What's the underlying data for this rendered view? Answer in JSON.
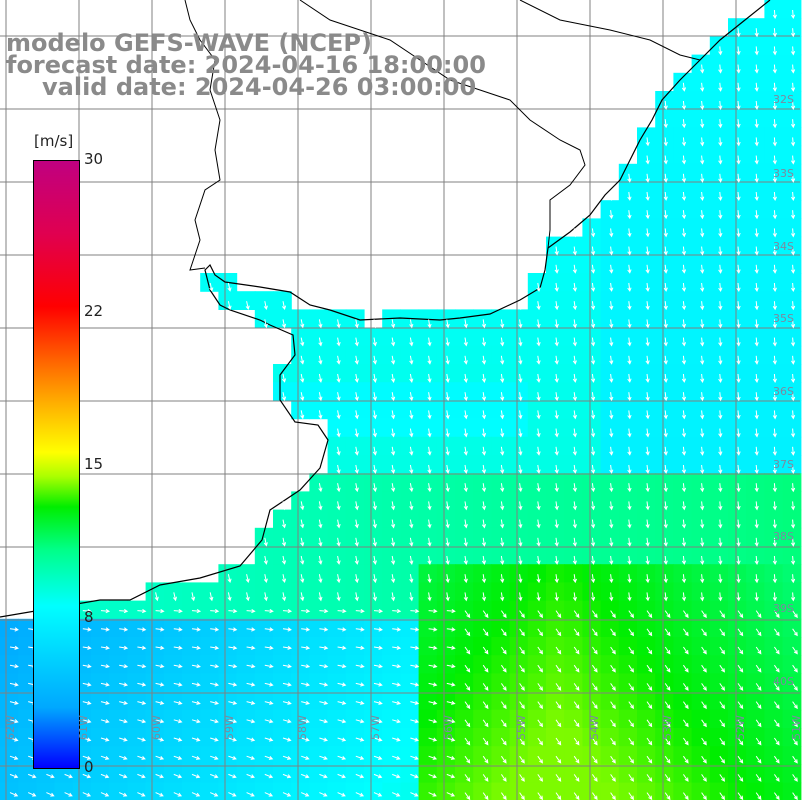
{
  "header": {
    "model": "modelo GEFS-WAVE (NCEP)",
    "forecast": "forecast date: 2024-04-16 18:00:00",
    "valid": "valid date: 2024-04-26 03:00:00"
  },
  "colorbar": {
    "unit": "[m/s]",
    "min": 0,
    "max": 30,
    "ticks": [
      "30",
      "22",
      "15",
      "8",
      "0"
    ]
  },
  "lat_labels": [
    "32S",
    "33S",
    "34S",
    "35S",
    "36S",
    "37S",
    "38S",
    "39S",
    "40S"
  ],
  "lon_labels": [
    "62W",
    "61W",
    "60W",
    "59W",
    "58W",
    "57W",
    "56W",
    "55W",
    "54W",
    "53W",
    "52W",
    "51W"
  ],
  "colors": {
    "land": "#ffffff",
    "grid": "#808080",
    "coast": "#000000",
    "arrow": "#ffffff",
    "title": "#8a8a8a"
  }
}
